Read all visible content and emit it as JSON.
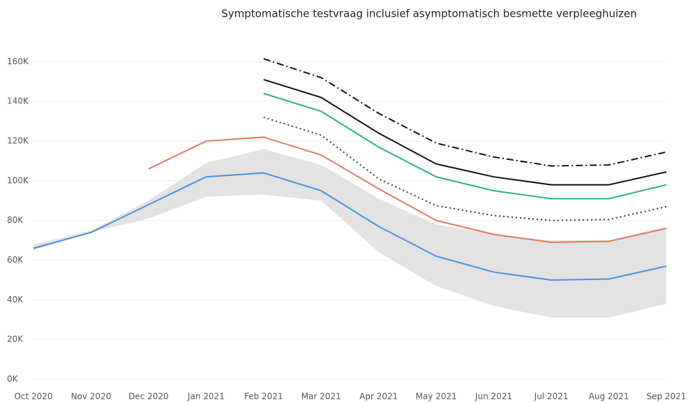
{
  "chart_data": {
    "type": "line",
    "title": "Symptomatische testvraag inclusief asymptomatisch besmette verpleeghuizen",
    "categories": [
      "Oct 2020",
      "Nov 2020",
      "Dec 2020",
      "Jan 2021",
      "Feb 2021",
      "Mar 2021",
      "Apr 2021",
      "May 2021",
      "Jun 2021",
      "Jul 2021",
      "Aug 2021",
      "Sep 2021"
    ],
    "ylim": [
      0,
      170000
    ],
    "yticks": [
      {
        "value": 0,
        "label": "0K"
      },
      {
        "value": 20000,
        "label": "20K"
      },
      {
        "value": 40000,
        "label": "40K"
      },
      {
        "value": 60000,
        "label": "60K"
      },
      {
        "value": 80000,
        "label": "80K"
      },
      {
        "value": 100000,
        "label": "100K"
      },
      {
        "value": 120000,
        "label": "120K"
      },
      {
        "value": 140000,
        "label": "140K"
      },
      {
        "value": 160000,
        "label": "160K"
      }
    ],
    "grid": true,
    "band": {
      "color": "#e3e3e3",
      "upper": [
        68000,
        75000,
        90000,
        109000,
        116000,
        108000,
        91000,
        78000,
        73000,
        70000,
        70000,
        77000
      ],
      "lower": [
        65000,
        74000,
        81000,
        92000,
        93000,
        90000,
        64000,
        47000,
        37000,
        31000,
        31000,
        38000
      ]
    },
    "series": [
      {
        "color": "#4a90e2",
        "dash": "solid",
        "values": [
          66000,
          74000,
          88000,
          102000,
          104000,
          95000,
          77000,
          62000,
          54000,
          50000,
          50500,
          57000
        ]
      },
      {
        "color": "#e07a5f",
        "dash": "solid",
        "values": [
          null,
          null,
          106000,
          120000,
          122000,
          113000,
          96000,
          80000,
          73000,
          69000,
          69500,
          76000
        ]
      },
      {
        "color": "#333333",
        "dash": "dotted",
        "values": [
          null,
          null,
          null,
          null,
          132000,
          123000,
          101000,
          87500,
          82500,
          80000,
          80500,
          87000
        ]
      },
      {
        "color": "#2bb08a",
        "dash": "solid",
        "values": [
          null,
          null,
          null,
          null,
          144000,
          135000,
          117000,
          102000,
          95000,
          91000,
          91000,
          98000
        ]
      },
      {
        "color": "#111111",
        "dash": "solid",
        "values": [
          null,
          null,
          null,
          null,
          151000,
          142000,
          124000,
          108500,
          102000,
          98000,
          98000,
          104500
        ]
      },
      {
        "color": "#111111",
        "dash": "dashdot",
        "values": [
          null,
          null,
          null,
          null,
          161500,
          152000,
          134000,
          119000,
          112000,
          107500,
          108000,
          114500
        ]
      }
    ]
  }
}
